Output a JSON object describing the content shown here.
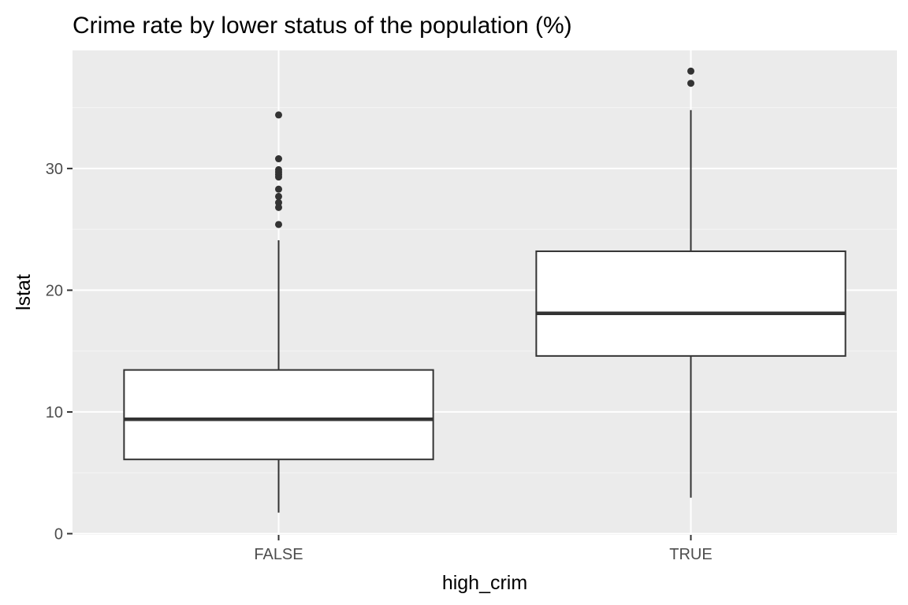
{
  "chart_data": {
    "type": "boxplot",
    "title": "Crime rate by lower status of the population (%)",
    "xlabel": "high_crim",
    "ylabel": "lstat",
    "categories": [
      "FALSE",
      "TRUE"
    ],
    "ylim": [
      -0.1,
      39.7
    ],
    "y_ticks": [
      0,
      10,
      20,
      30
    ],
    "y_tick_labels": [
      "0",
      "10",
      "20",
      "30"
    ],
    "grid": true,
    "legend": "none",
    "boxes": [
      {
        "category": "FALSE",
        "min": 1.73,
        "q1": 6.1,
        "median": 9.4,
        "q3": 13.45,
        "max": 24.1,
        "outliers": [
          25.4,
          26.8,
          27.2,
          27.7,
          28.3,
          29.3,
          29.5,
          29.7,
          29.9,
          30.8,
          34.4
        ]
      },
      {
        "category": "TRUE",
        "min": 2.96,
        "q1": 14.6,
        "median": 18.1,
        "q3": 23.2,
        "max": 34.8,
        "outliers": [
          37.0,
          38.0
        ]
      }
    ],
    "colors": {
      "panel_background": "#ebebeb",
      "grid_major": "#ffffff",
      "grid_minor": "#f5f5f5",
      "box_fill": "#ffffff",
      "box_line": "#333333",
      "tick_label": "#4d4d4d",
      "axis_ticks": "#333333"
    }
  }
}
